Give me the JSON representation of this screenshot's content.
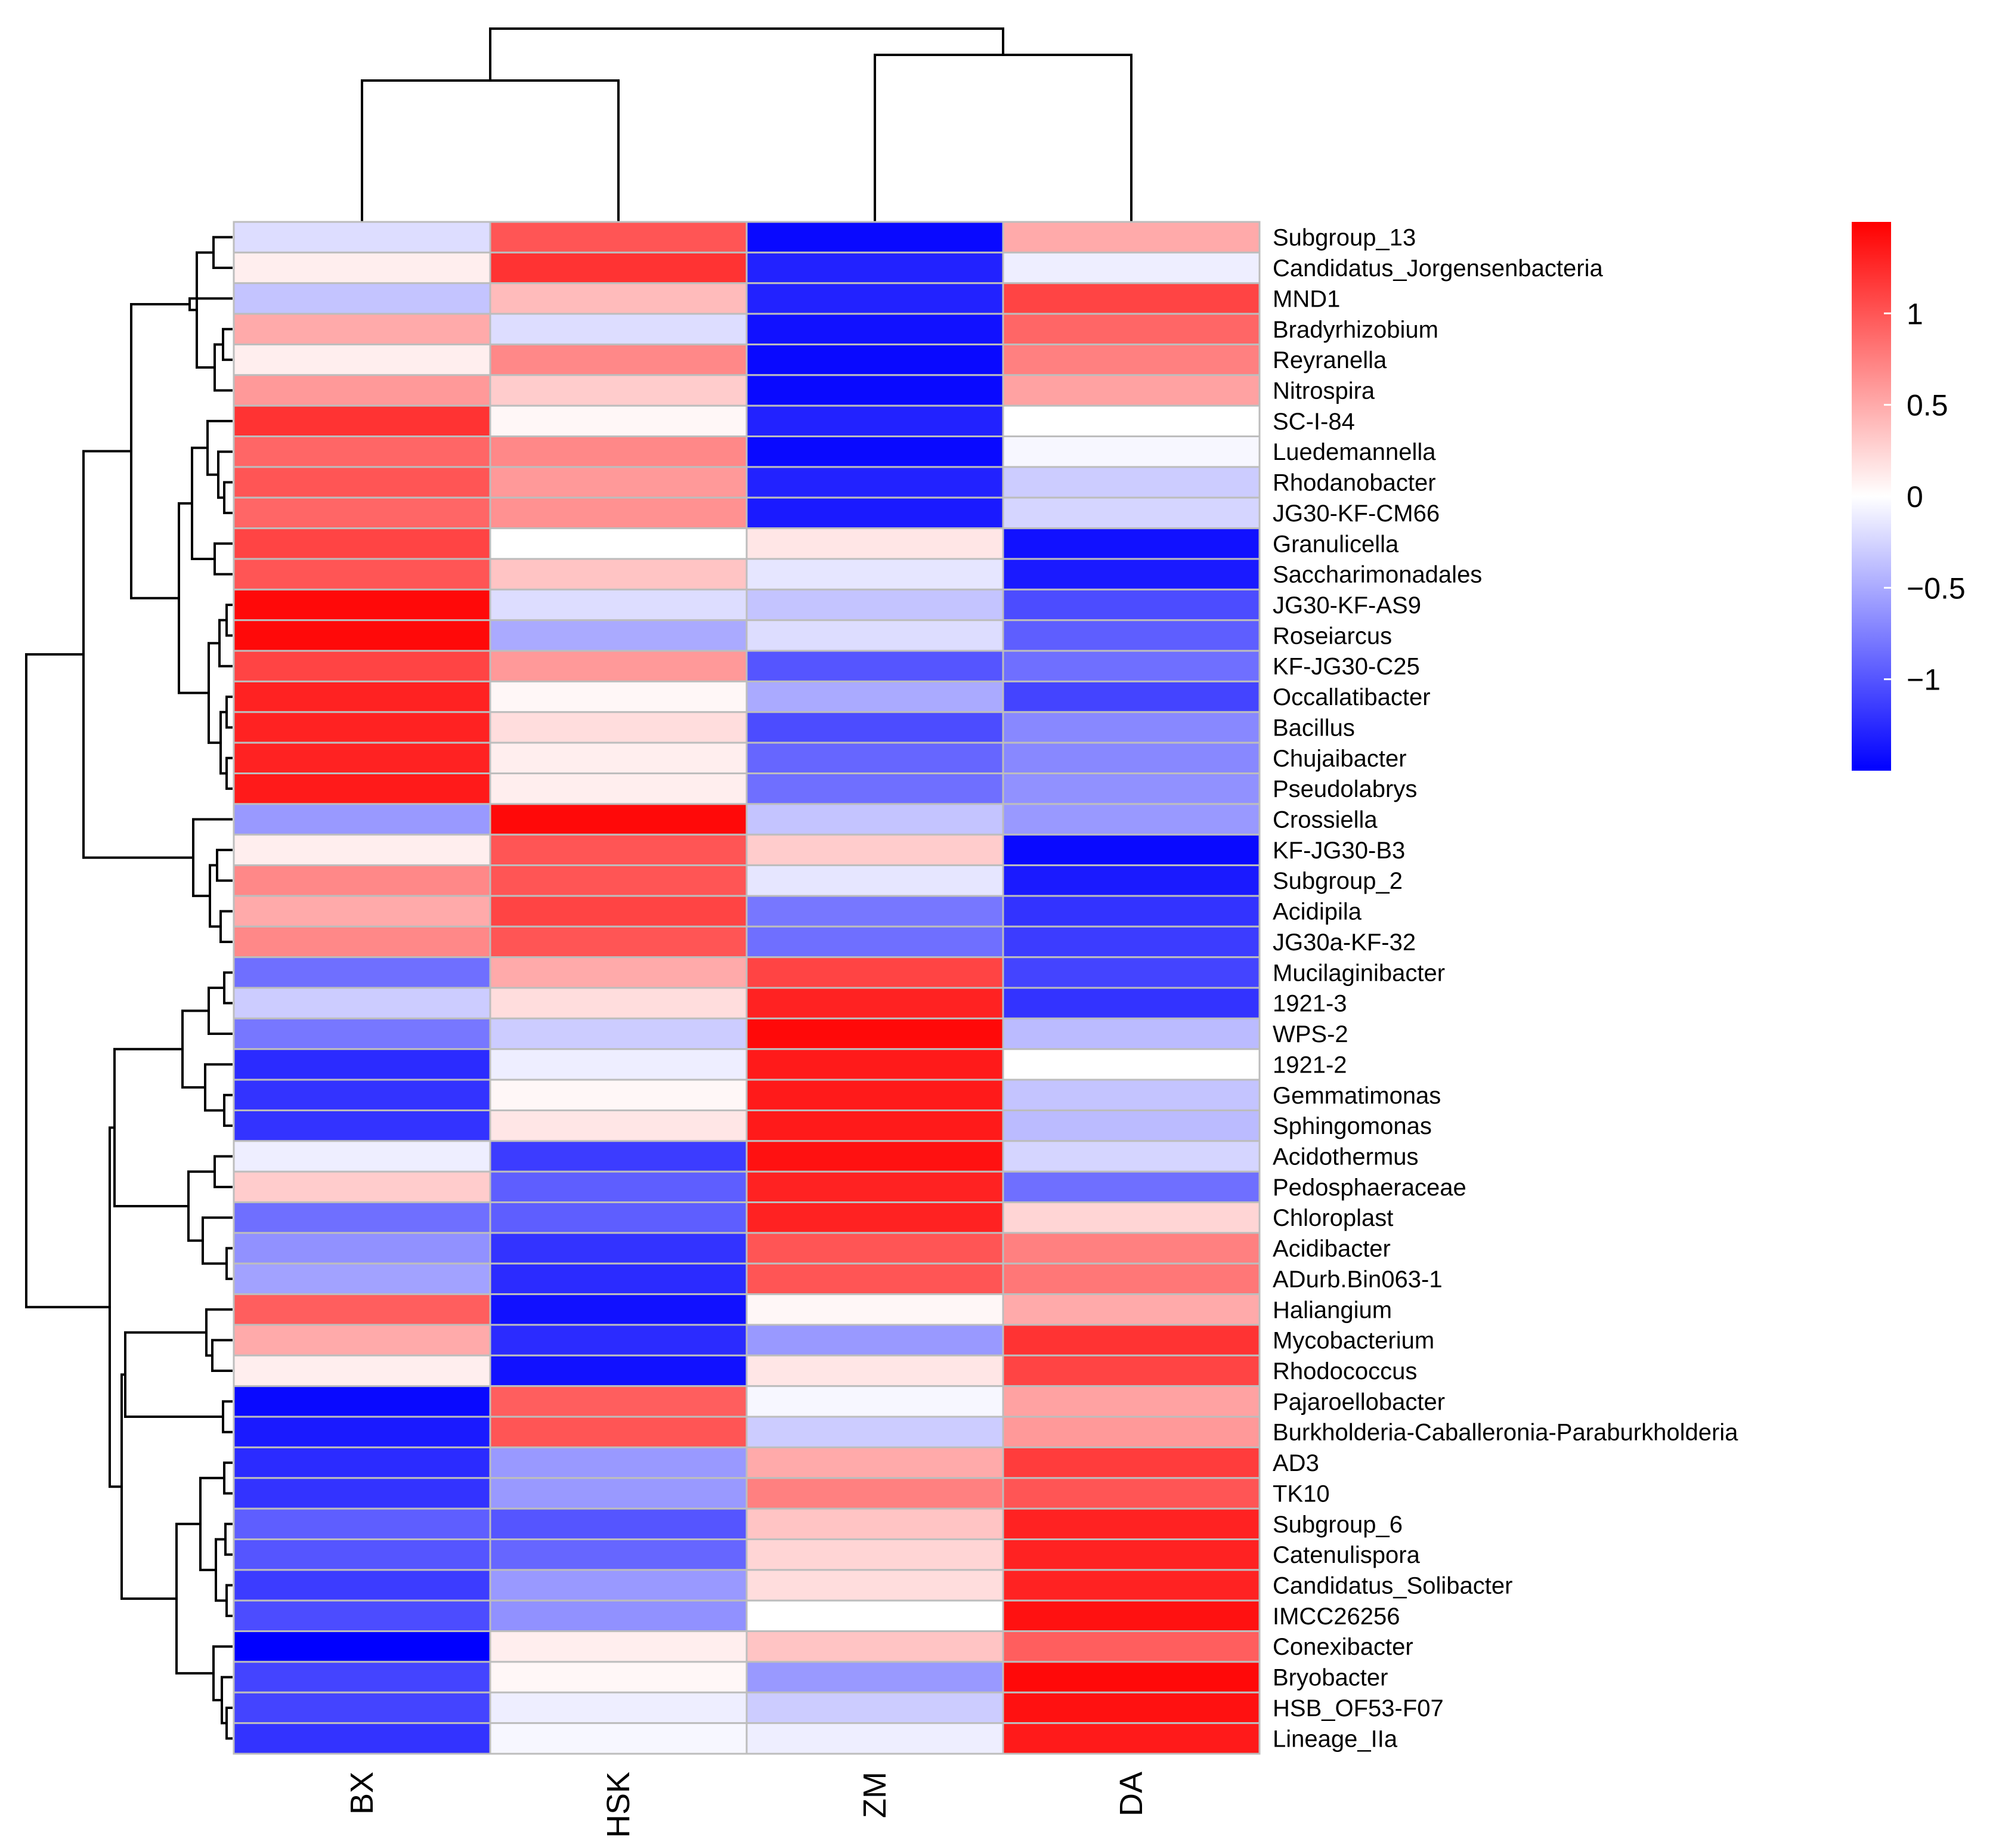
{
  "chart_data": {
    "type": "heatmap",
    "title": "",
    "columns": [
      "BX",
      "HSK",
      "ZM",
      "DA"
    ],
    "rows": [
      "Subgroup_13",
      "Candidatus_Jorgensenbacteria",
      "MND1",
      "Bradyrhizobium",
      "Reyranella",
      "Nitrospira",
      "SC-I-84",
      "Luedemannella",
      "Rhodanobacter",
      "JG30-KF-CM66",
      "Granulicella",
      "Saccharimonadales",
      "JG30-KF-AS9",
      "Roseiarcus",
      "KF-JG30-C25",
      "Occallatibacter",
      "Bacillus",
      "Chujaibacter",
      "Pseudolabrys",
      "Crossiella",
      "KF-JG30-B3",
      "Subgroup_2",
      "Acidipila",
      "JG30a-KF-32",
      "Mucilaginibacter",
      "1921-3",
      "WPS-2",
      "1921-2",
      "Gemmatimonas",
      "Sphingomonas",
      "Acidothermus",
      "Pedosphaeraceae",
      "Chloroplast",
      "Acidibacter",
      "ADurb.Bin063-1",
      "Haliangium",
      "Mycobacterium",
      "Rhodococcus",
      "Pajaroellobacter",
      "Burkholderia-Caballeronia-Paraburkholderia",
      "AD3",
      "TK10",
      "Subgroup_6",
      "Catenulispora",
      "Candidatus_Solibacter",
      "IMCC26256",
      "Conexibacter",
      "Bryobacter",
      "HSB_OF53-F07",
      "Lineage_IIa"
    ],
    "values": [
      [
        -0.2,
        1.0,
        -1.45,
        0.5
      ],
      [
        0.1,
        1.2,
        -1.3,
        -0.1
      ],
      [
        -0.35,
        0.4,
        -1.3,
        1.1
      ],
      [
        0.5,
        -0.2,
        -1.4,
        0.9
      ],
      [
        0.1,
        0.7,
        -1.45,
        0.75
      ],
      [
        0.6,
        0.3,
        -1.45,
        0.55
      ],
      [
        1.2,
        0.05,
        -1.3,
        0.0
      ],
      [
        0.9,
        0.7,
        -1.45,
        -0.05
      ],
      [
        1.0,
        0.6,
        -1.3,
        -0.3
      ],
      [
        0.9,
        0.65,
        -1.35,
        -0.25
      ],
      [
        1.1,
        0.0,
        0.15,
        -1.4
      ],
      [
        1.0,
        0.35,
        -0.15,
        -1.35
      ],
      [
        1.45,
        -0.2,
        -0.35,
        -1.05
      ],
      [
        1.45,
        -0.5,
        -0.2,
        -0.95
      ],
      [
        1.1,
        0.6,
        -1.0,
        -0.85
      ],
      [
        1.3,
        0.05,
        -0.5,
        -1.1
      ],
      [
        1.3,
        0.2,
        -1.05,
        -0.7
      ],
      [
        1.3,
        0.1,
        -0.9,
        -0.7
      ],
      [
        1.35,
        0.1,
        -0.85,
        -0.65
      ],
      [
        -0.6,
        1.45,
        -0.35,
        -0.6
      ],
      [
        0.1,
        1.0,
        0.3,
        -1.45
      ],
      [
        0.7,
        1.0,
        -0.15,
        -1.35
      ],
      [
        0.5,
        1.1,
        -0.8,
        -1.2
      ],
      [
        0.7,
        1.0,
        -0.85,
        -1.15
      ],
      [
        -0.85,
        0.5,
        1.1,
        -1.1
      ],
      [
        -0.3,
        0.2,
        1.3,
        -1.2
      ],
      [
        -0.8,
        -0.3,
        1.45,
        -0.4
      ],
      [
        -1.25,
        -0.1,
        1.35,
        0.0
      ],
      [
        -1.2,
        0.05,
        1.35,
        -0.35
      ],
      [
        -1.2,
        0.15,
        1.35,
        -0.4
      ],
      [
        -0.1,
        -1.15,
        1.4,
        -0.25
      ],
      [
        0.3,
        -0.95,
        1.3,
        -0.85
      ],
      [
        -0.85,
        -0.95,
        1.3,
        0.25
      ],
      [
        -0.65,
        -1.2,
        1.0,
        0.75
      ],
      [
        -0.55,
        -1.25,
        1.0,
        0.8
      ],
      [
        0.95,
        -1.4,
        0.05,
        0.5
      ],
      [
        0.5,
        -1.25,
        -0.6,
        1.2
      ],
      [
        0.1,
        -1.4,
        0.15,
        1.1
      ],
      [
        -1.45,
        0.95,
        -0.05,
        0.55
      ],
      [
        -1.35,
        1.0,
        -0.3,
        0.6
      ],
      [
        -1.25,
        -0.6,
        0.5,
        1.15
      ],
      [
        -1.2,
        -0.6,
        0.75,
        1.0
      ],
      [
        -0.95,
        -1.0,
        0.35,
        1.3
      ],
      [
        -1.0,
        -0.9,
        0.25,
        1.3
      ],
      [
        -1.15,
        -0.6,
        0.2,
        1.3
      ],
      [
        -1.05,
        -0.65,
        0.0,
        1.4
      ],
      [
        -1.5,
        0.1,
        0.35,
        0.95
      ],
      [
        -1.1,
        0.05,
        -0.6,
        1.45
      ],
      [
        -1.1,
        -0.1,
        -0.3,
        1.4
      ],
      [
        -1.2,
        -0.05,
        -0.1,
        1.35
      ]
    ],
    "color_scale": {
      "min": -1.5,
      "max": 1.5,
      "low_color": "#0000FF",
      "mid_color": "#FFFFFF",
      "high_color": "#FF0000"
    },
    "legend": {
      "tick_values": [
        1,
        0.5,
        0,
        -0.5,
        -1
      ],
      "tick_labels": [
        "1",
        "0.5",
        "0",
        "−0.5",
        "−1"
      ]
    },
    "column_dendrogram": "((BX,HSK),(ZM,DA))",
    "row_dendrogram": "hierarchical clustering of rows"
  }
}
